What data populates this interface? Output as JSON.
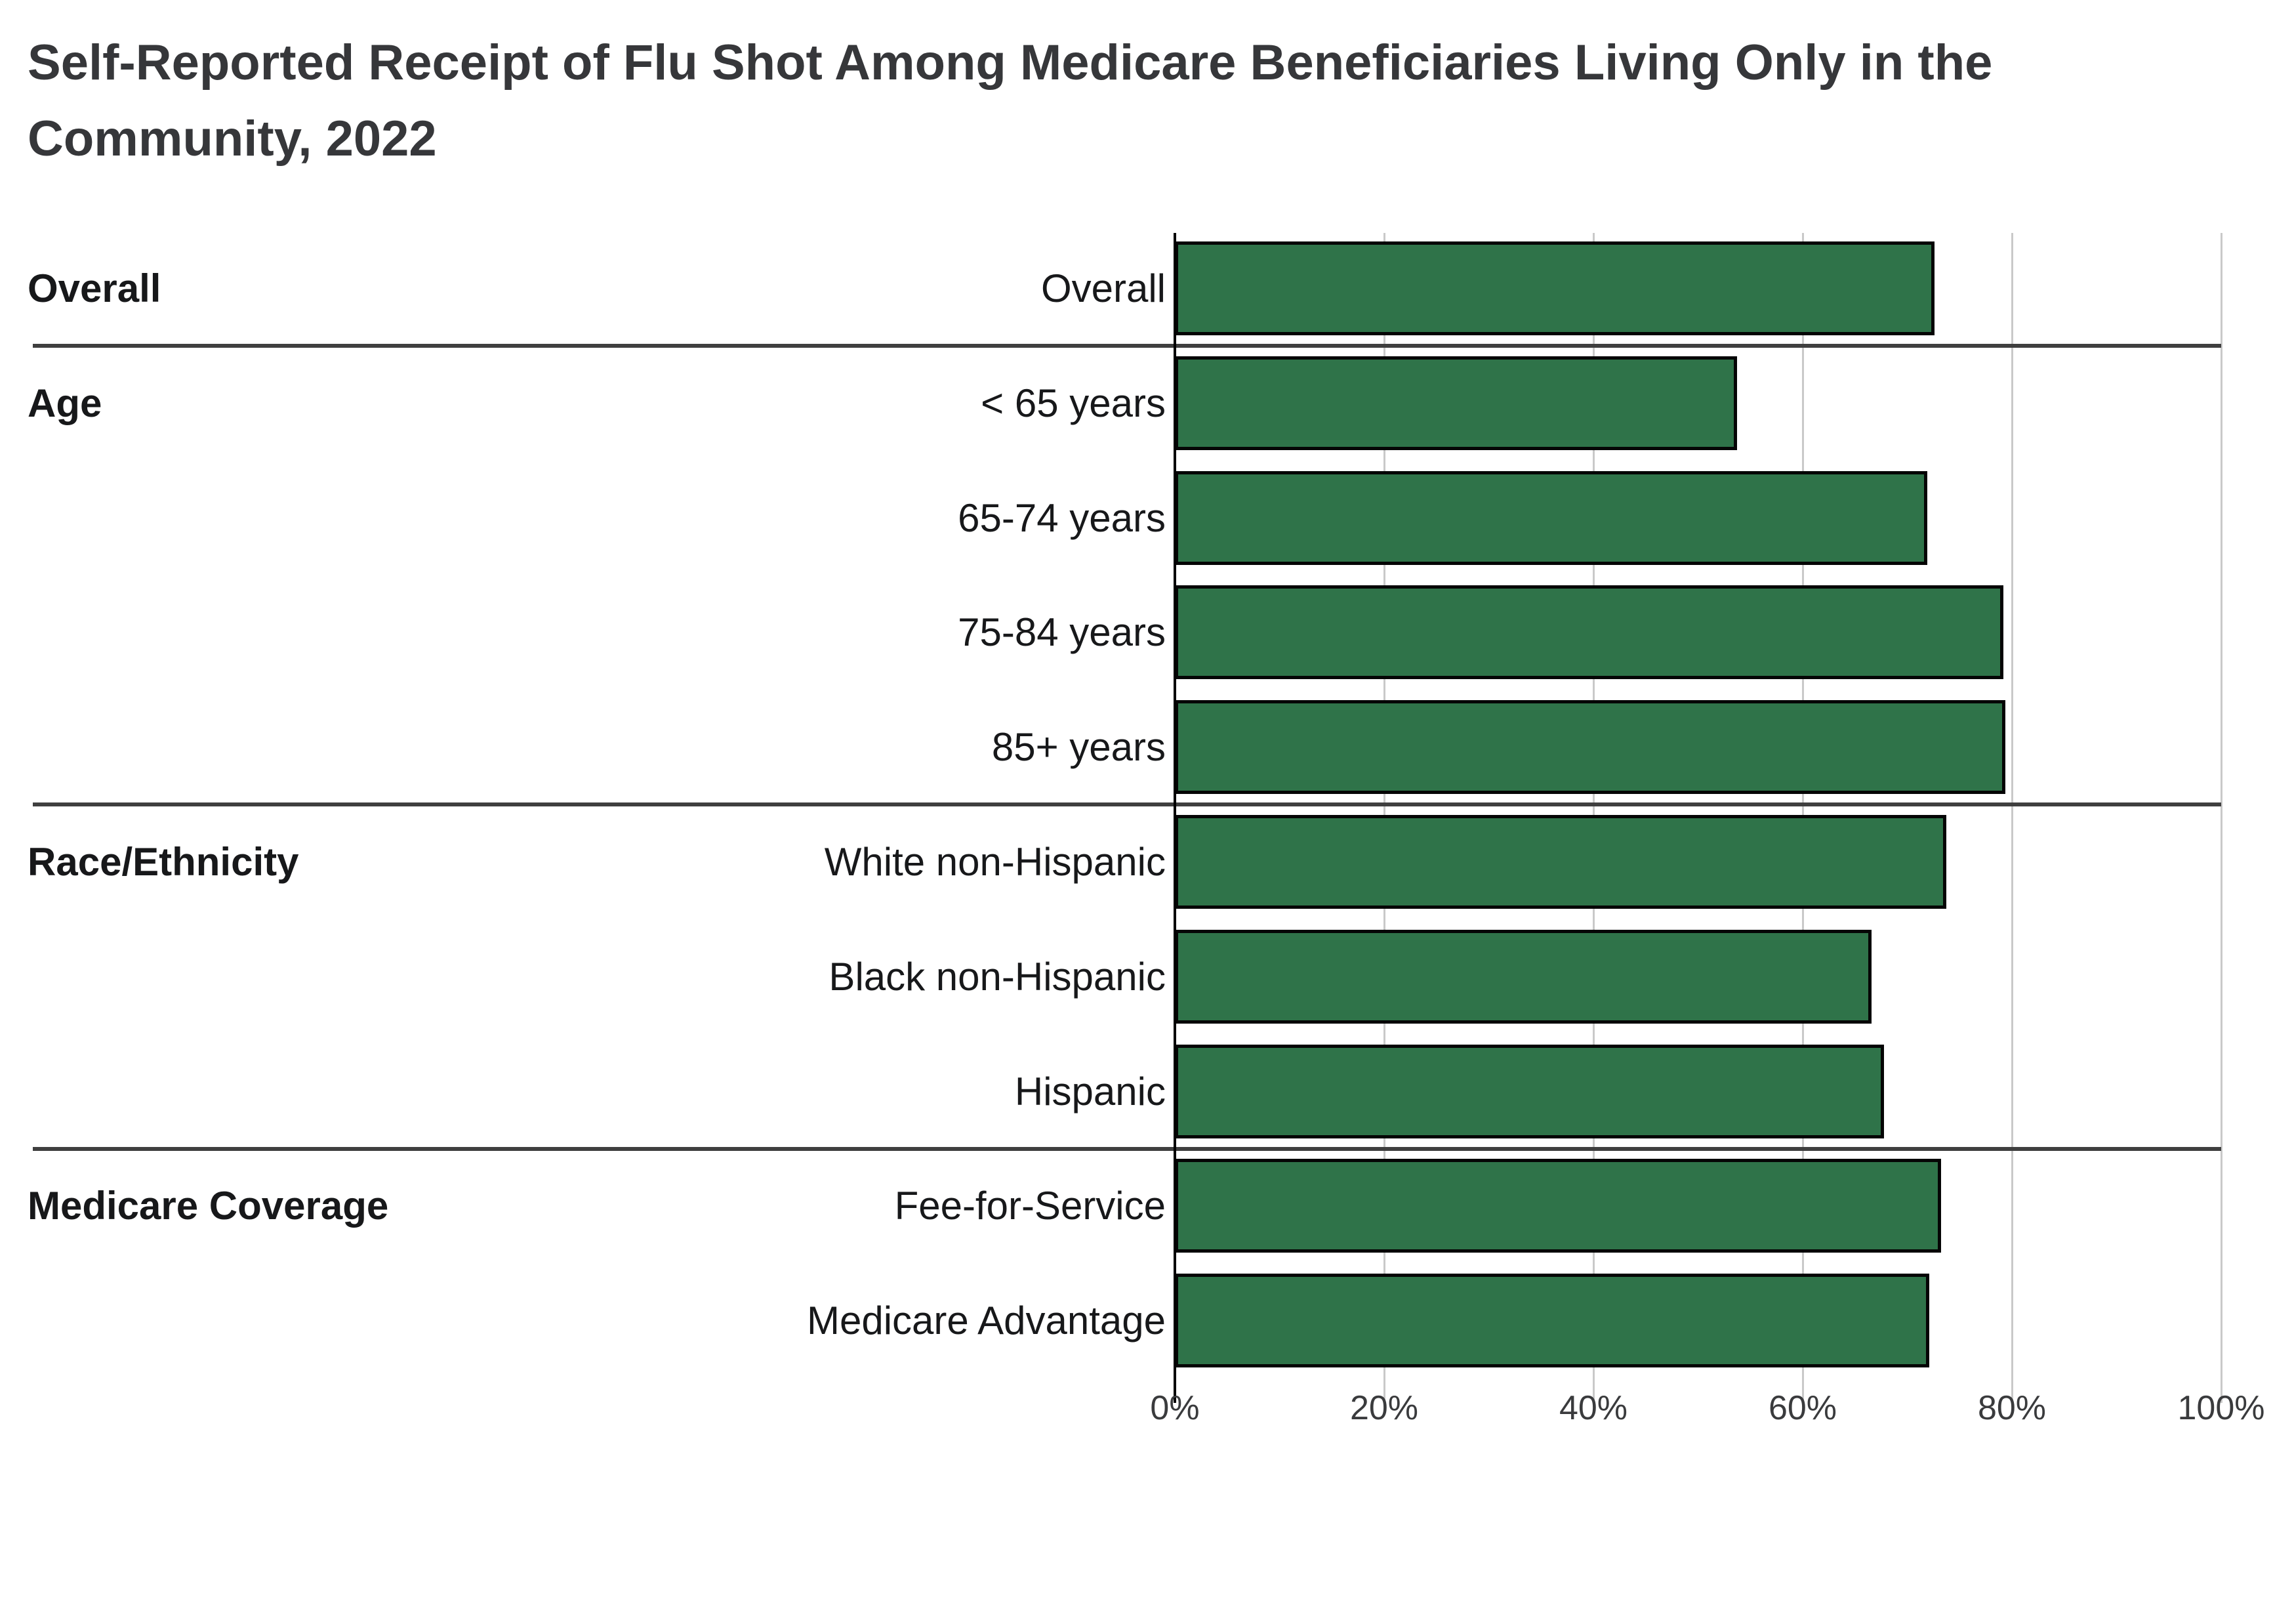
{
  "title": {
    "line1": "Self-Reported Receipt of Flu Shot Among Medicare Beneficiaries Living Only in the",
    "line2": "Community, 2022"
  },
  "chart_data": {
    "type": "bar",
    "orientation": "horizontal",
    "title": "Self-Reported Receipt of Flu Shot Among Medicare Beneficiaries Living Only in the Community, 2022",
    "value_unit": "%",
    "xlabel": "",
    "ylabel": "",
    "xlim": [
      0,
      100
    ],
    "grid": true,
    "legend": "none",
    "groups": [
      {
        "label": "Overall",
        "rows": [
          {
            "label": "Overall",
            "value": 72.6
          }
        ]
      },
      {
        "label": "Age",
        "rows": [
          {
            "label": "< 65 years",
            "value": 53.7
          },
          {
            "label": "65-74 years",
            "value": 71.9
          },
          {
            "label": "75-84 years",
            "value": 79.2
          },
          {
            "label": "85+ years",
            "value": 79.4
          }
        ]
      },
      {
        "label": "Race/Ethnicity",
        "rows": [
          {
            "label": "White non-Hispanic",
            "value": 73.7
          },
          {
            "label": "Black non-Hispanic",
            "value": 66.6
          },
          {
            "label": "Hispanic",
            "value": 67.8
          }
        ]
      },
      {
        "label": "Medicare Coverage",
        "rows": [
          {
            "label": "Fee-for-Service",
            "value": 73.2
          },
          {
            "label": "Medicare Advantage",
            "value": 72.1
          }
        ]
      }
    ],
    "x_axis": {
      "tick_labels": [
        "0%",
        "20%",
        "40%",
        "60%",
        "80%",
        "100%"
      ],
      "tick_values": [
        0,
        20,
        40,
        60,
        80,
        100
      ]
    },
    "colors": {
      "bar_fill": "#2f7349",
      "bar_border": "#050505",
      "gridline": "#c9c9c9",
      "axis_line": "#000000",
      "separator": "#3f3f3f",
      "title_text": "#36373a",
      "label_text": "#17181a",
      "tick_text": "#3a3b3d",
      "background": "#ffffff"
    }
  }
}
